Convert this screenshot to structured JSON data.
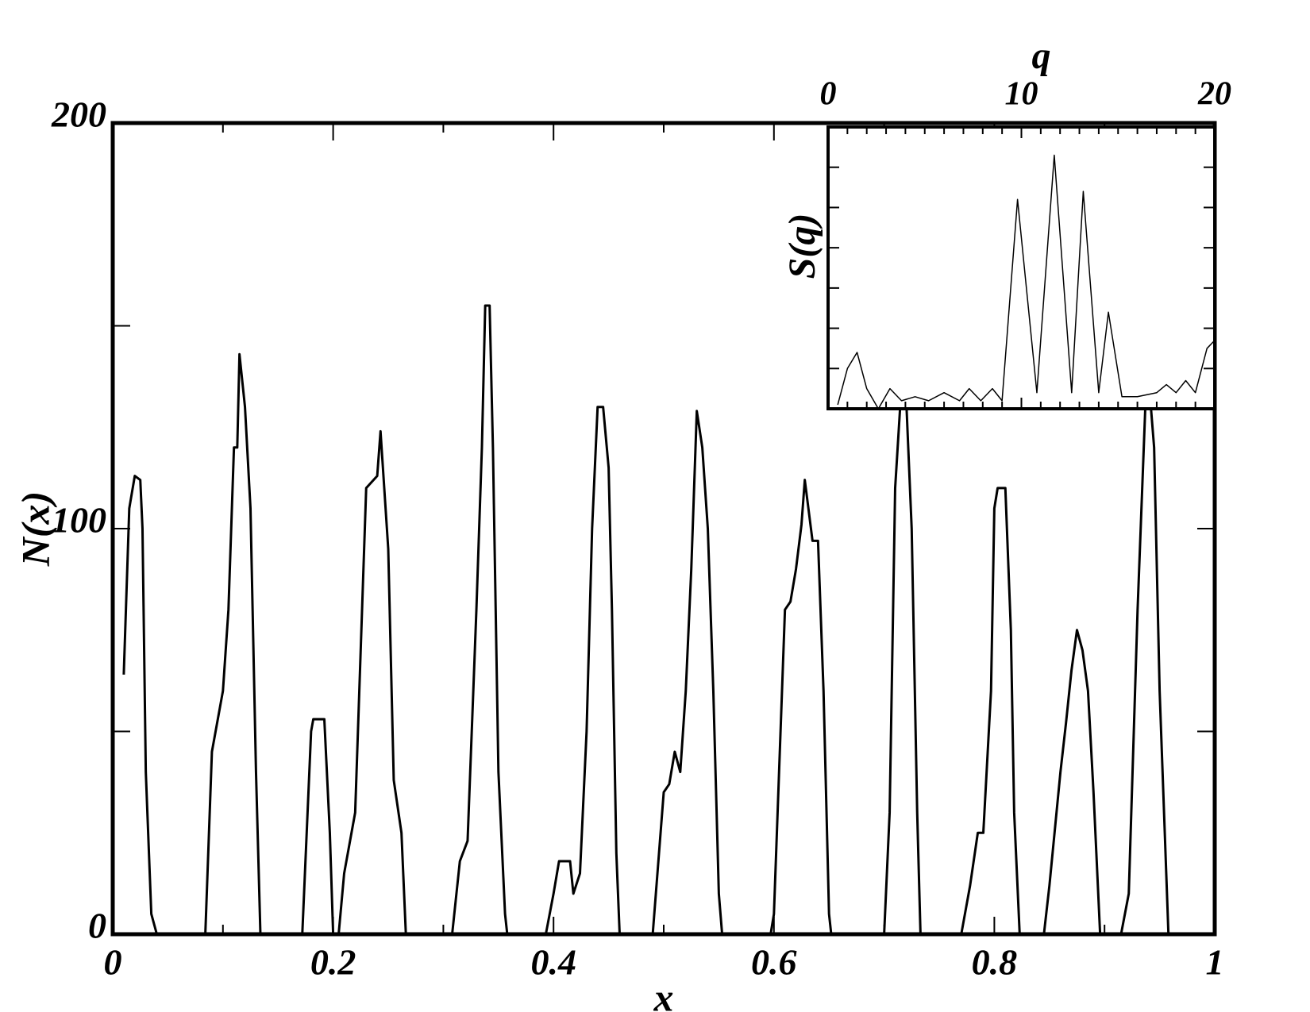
{
  "chart_data": [
    {
      "type": "line",
      "xlabel": "x",
      "ylabel": "N(x)",
      "xlim": [
        0,
        1
      ],
      "ylim": [
        0,
        200
      ],
      "xticks": [
        0,
        0.2,
        0.4,
        0.6,
        0.8,
        1
      ],
      "xminorticks": [
        0.1,
        0.3,
        0.5,
        0.7,
        0.9
      ],
      "yticks": [
        0,
        100,
        200
      ],
      "yminorticks": [
        50,
        150
      ],
      "color": "#000000",
      "x": [
        0.01,
        0.015,
        0.02,
        0.025,
        0.027,
        0.03,
        0.035,
        0.04,
        0.084,
        0.09,
        0.1,
        0.105,
        0.11,
        0.113,
        0.115,
        0.12,
        0.125,
        0.13,
        0.134,
        0.172,
        0.18,
        0.182,
        0.192,
        0.197,
        0.2,
        0.205,
        0.21,
        0.22,
        0.225,
        0.23,
        0.24,
        0.243,
        0.25,
        0.255,
        0.262,
        0.266,
        0.308,
        0.315,
        0.322,
        0.33,
        0.335,
        0.338,
        0.342,
        0.345,
        0.35,
        0.356,
        0.358,
        0.393,
        0.4,
        0.405,
        0.415,
        0.418,
        0.424,
        0.43,
        0.435,
        0.44,
        0.445,
        0.45,
        0.453,
        0.457,
        0.46,
        0.49,
        0.5,
        0.505,
        0.51,
        0.515,
        0.52,
        0.525,
        0.53,
        0.535,
        0.54,
        0.545,
        0.55,
        0.553,
        0.597,
        0.6,
        0.61,
        0.615,
        0.62,
        0.625,
        0.628,
        0.635,
        0.64,
        0.645,
        0.65,
        0.652,
        0.7,
        0.705,
        0.71,
        0.715,
        0.72,
        0.725,
        0.73,
        0.733,
        0.77,
        0.778,
        0.785,
        0.79,
        0.797,
        0.8,
        0.803,
        0.81,
        0.815,
        0.818,
        0.823,
        0.845,
        0.85,
        0.86,
        0.865,
        0.87,
        0.875,
        0.88,
        0.885,
        0.89,
        0.896,
        0.915,
        0.922,
        0.93,
        0.938,
        0.94,
        0.945,
        0.95,
        0.958
      ],
      "values": [
        64,
        105,
        113,
        112,
        100,
        40,
        5,
        0,
        0,
        45,
        60,
        80,
        120,
        120,
        143,
        130,
        105,
        40,
        0,
        0,
        50,
        53,
        53,
        25,
        0,
        0,
        15,
        30,
        70,
        110,
        113,
        124,
        95,
        38,
        25,
        0,
        0,
        18,
        23,
        80,
        120,
        155,
        155,
        120,
        40,
        5,
        0,
        0,
        10,
        18,
        18,
        10,
        15,
        50,
        100,
        130,
        130,
        115,
        80,
        20,
        0,
        0,
        35,
        37,
        45,
        40,
        60,
        90,
        129,
        120,
        100,
        60,
        10,
        0,
        0,
        5,
        80,
        82,
        90,
        101,
        112,
        97,
        97,
        60,
        5,
        0,
        0,
        30,
        110,
        132,
        132,
        100,
        30,
        0,
        0,
        12,
        25,
        25,
        60,
        105,
        110,
        110,
        75,
        30,
        0,
        0,
        12,
        40,
        52,
        65,
        75,
        70,
        60,
        35,
        0,
        0,
        10,
        80,
        137,
        137,
        120,
        60,
        0
      ]
    },
    {
      "type": "line",
      "xlabel": "q",
      "ylabel": "S(q)",
      "xlim": [
        0,
        20
      ],
      "ylim": [
        0,
        7
      ],
      "xticks": [
        0,
        10,
        20
      ],
      "xminorticks": [
        1,
        2,
        3,
        4,
        5,
        6,
        7,
        8,
        9,
        11,
        12,
        13,
        14,
        15,
        16,
        17,
        18,
        19
      ],
      "yminorticks": [
        1,
        2,
        3,
        4,
        5,
        6
      ],
      "color": "#000000",
      "x": [
        0.5,
        1.0,
        1.5,
        2.0,
        2.6,
        3.2,
        3.8,
        4.5,
        5.2,
        6.0,
        6.8,
        7.3,
        7.9,
        8.5,
        9.0,
        9.8,
        10.8,
        11.7,
        12.6,
        13.2,
        14.0,
        14.5,
        15.2,
        16.0,
        17.0,
        17.5,
        18.0,
        18.5,
        19.0,
        19.6,
        20.0
      ],
      "values": [
        0.1,
        1.0,
        1.4,
        0.5,
        0.0,
        0.5,
        0.2,
        0.3,
        0.2,
        0.4,
        0.2,
        0.5,
        0.2,
        0.5,
        0.2,
        5.2,
        0.4,
        6.3,
        0.4,
        5.4,
        0.4,
        2.4,
        0.3,
        0.3,
        0.4,
        0.6,
        0.4,
        0.7,
        0.4,
        1.5,
        1.7
      ]
    }
  ]
}
